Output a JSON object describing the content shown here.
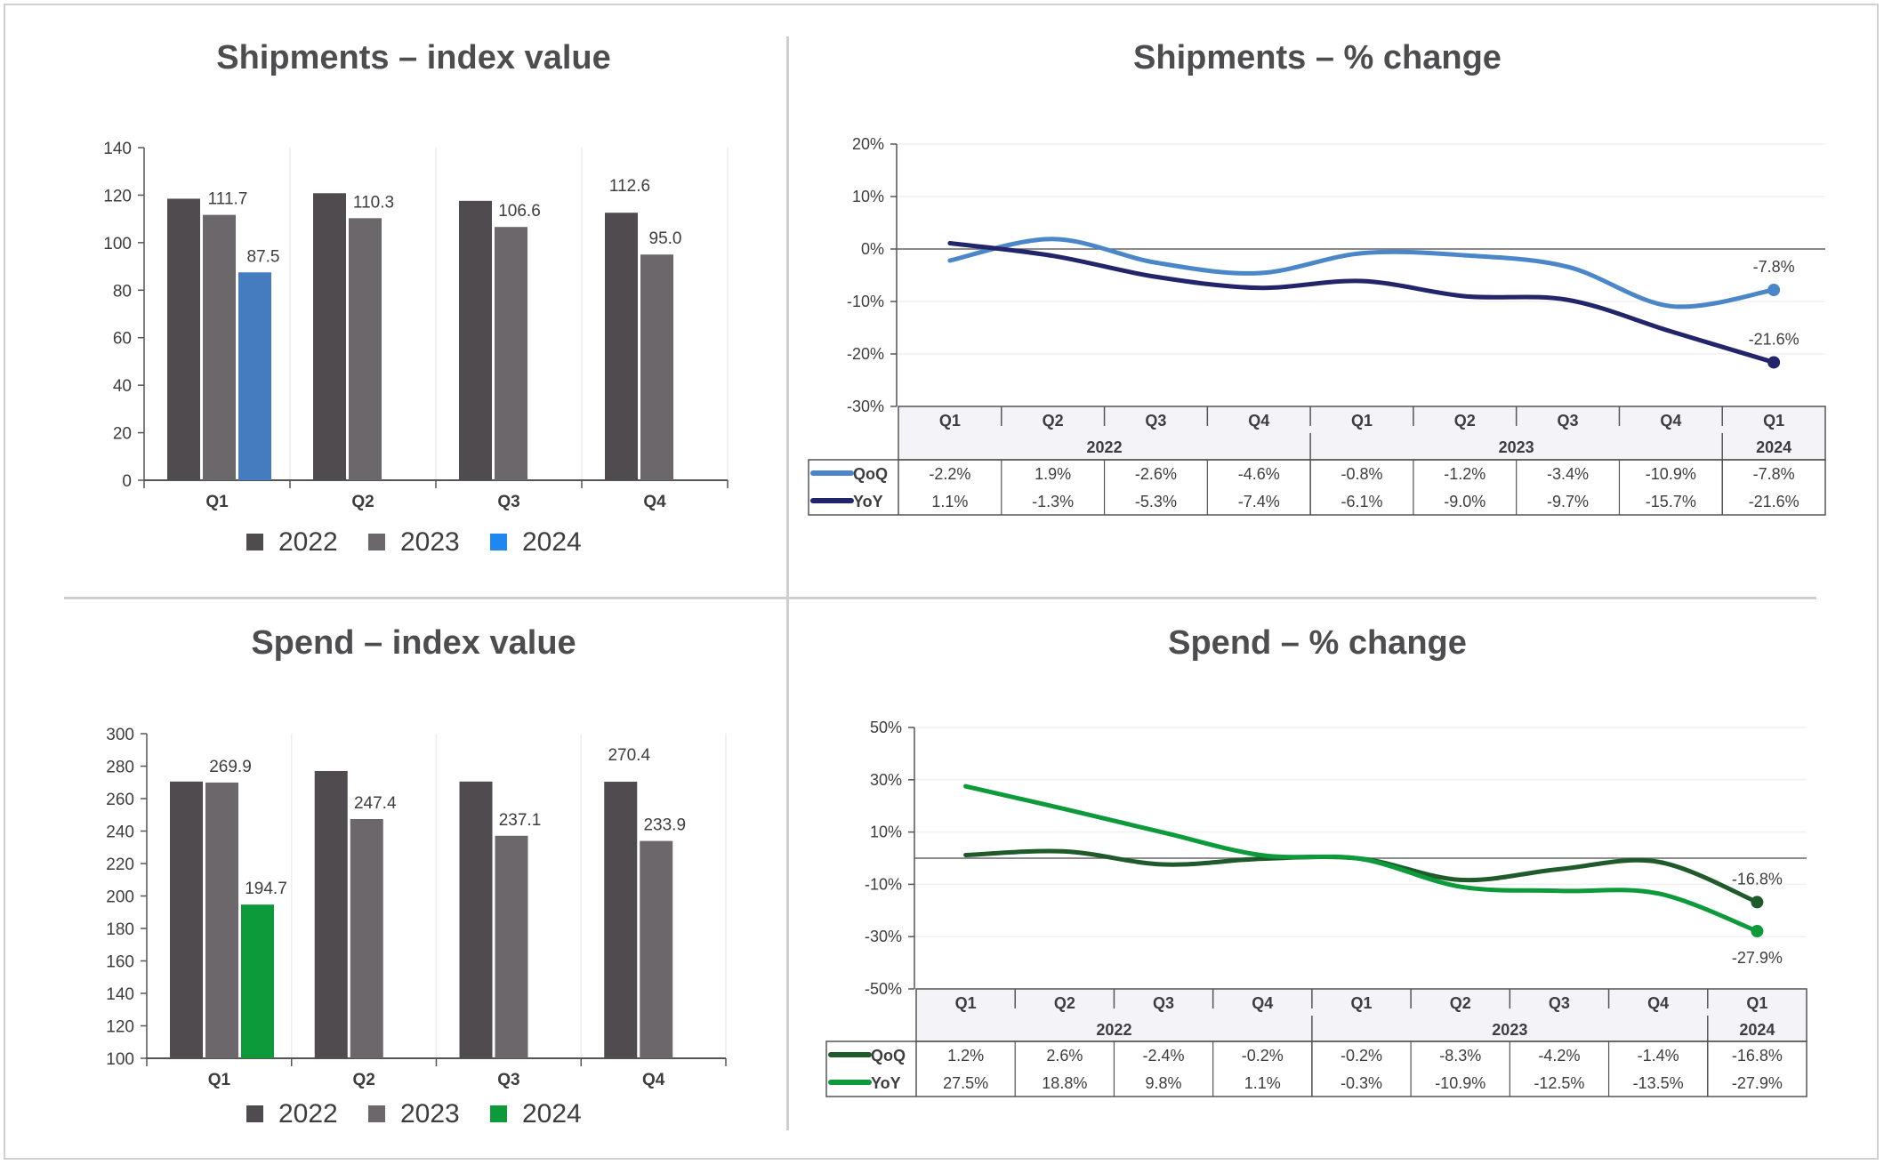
{
  "chart_data": [
    {
      "type": "bar",
      "title": "Shipments – index value",
      "categories": [
        "Q1",
        "Q2",
        "Q3",
        "Q4"
      ],
      "ylim": [
        0,
        140
      ],
      "ystep": 20,
      "series": [
        {
          "name": "2022",
          "color": "#4f4b4f",
          "legend_color": "#4f4b4f",
          "values": [
            118.5,
            120.8,
            117.6,
            112.6
          ],
          "labels": [
            null,
            null,
            null,
            "112.6"
          ]
        },
        {
          "name": "2023",
          "color": "#6b676b",
          "legend_color": "#6b676b",
          "values": [
            111.7,
            110.3,
            106.6,
            95.0
          ],
          "labels": [
            "111.7",
            "110.3",
            "106.6",
            "95.0"
          ]
        },
        {
          "name": "2024",
          "color": "#457bbf",
          "legend_color": "#1e88f0",
          "values": [
            87.5,
            null,
            null,
            null
          ],
          "labels": [
            "87.5",
            null,
            null,
            null
          ]
        }
      ]
    },
    {
      "type": "line",
      "title": "Shipments – % change",
      "ylim": [
        -30,
        20
      ],
      "yticks": [
        20,
        10,
        0,
        -10,
        -20,
        -30
      ],
      "categories": [
        "Q1",
        "Q2",
        "Q3",
        "Q4",
        "Q1",
        "Q2",
        "Q3",
        "Q4",
        "Q1"
      ],
      "years": [
        {
          "label": "2022",
          "span": 4
        },
        {
          "label": "2023",
          "span": 4
        },
        {
          "label": "2024",
          "span": 1
        }
      ],
      "series": [
        {
          "name": "QoQ",
          "color": "#4a86c8",
          "values": [
            -2.2,
            1.9,
            -2.6,
            -4.6,
            -0.8,
            -1.2,
            -3.4,
            -10.9,
            -7.8
          ],
          "labels": [
            "-2.2%",
            "1.9%",
            "-2.6%",
            "-4.6%",
            "-0.8%",
            "-1.2%",
            "-3.4%",
            "-10.9%",
            "-7.8%"
          ],
          "end_label": "-7.8%",
          "end_pos": "above"
        },
        {
          "name": "YoY",
          "color": "#23256b",
          "values": [
            1.1,
            -1.3,
            -5.3,
            -7.4,
            -6.1,
            -9.0,
            -9.7,
            -15.7,
            -21.6
          ],
          "labels": [
            "1.1%",
            "-1.3%",
            "-5.3%",
            "-7.4%",
            "-6.1%",
            "-9.0%",
            "-9.7%",
            "-15.7%",
            "-21.6%"
          ],
          "end_label": "-21.6%",
          "end_pos": "above"
        }
      ]
    },
    {
      "type": "bar",
      "title": "Spend – index value",
      "categories": [
        "Q1",
        "Q2",
        "Q3",
        "Q4"
      ],
      "ylim": [
        100,
        300
      ],
      "ystep": 20,
      "series": [
        {
          "name": "2022",
          "color": "#4f4b4f",
          "legend_color": "#4f4b4f",
          "values": [
            270.5,
            277.0,
            270.5,
            270.4
          ],
          "labels": [
            null,
            null,
            null,
            "270.4"
          ]
        },
        {
          "name": "2023",
          "color": "#6b676b",
          "legend_color": "#6b676b",
          "values": [
            269.9,
            247.4,
            237.1,
            233.9
          ],
          "labels": [
            "269.9",
            "247.4",
            "237.1",
            "233.9"
          ]
        },
        {
          "name": "2024",
          "color": "#0c9a3a",
          "legend_color": "#0c9a3a",
          "values": [
            194.7,
            null,
            null,
            null
          ],
          "labels": [
            "194.7",
            null,
            null,
            null
          ]
        }
      ]
    },
    {
      "type": "line",
      "title": "Spend – % change",
      "ylim": [
        -50,
        50
      ],
      "yticks": [
        50,
        30,
        10,
        -10,
        -30,
        -50
      ],
      "categories": [
        "Q1",
        "Q2",
        "Q3",
        "Q4",
        "Q1",
        "Q2",
        "Q3",
        "Q4",
        "Q1"
      ],
      "years": [
        {
          "label": "2022",
          "span": 4
        },
        {
          "label": "2023",
          "span": 4
        },
        {
          "label": "2024",
          "span": 1
        }
      ],
      "series": [
        {
          "name": "QoQ",
          "color": "#1f5a2a",
          "values": [
            1.2,
            2.6,
            -2.4,
            -0.2,
            -0.2,
            -8.3,
            -4.2,
            -1.4,
            -16.8
          ],
          "labels": [
            "1.2%",
            "2.6%",
            "-2.4%",
            "-0.2%",
            "-0.2%",
            "-8.3%",
            "-4.2%",
            "-1.4%",
            "-16.8%"
          ],
          "end_label": "-16.8%",
          "end_pos": "above"
        },
        {
          "name": "YoY",
          "color": "#0c9a3a",
          "values": [
            27.5,
            18.8,
            9.8,
            1.1,
            -0.3,
            -10.9,
            -12.5,
            -13.5,
            -27.9
          ],
          "labels": [
            "27.5%",
            "18.8%",
            "9.8%",
            "1.1%",
            "-0.3%",
            "-10.9%",
            "-12.5%",
            "-13.5%",
            "-27.9%"
          ],
          "end_label": "-27.9%",
          "end_pos": "below"
        }
      ]
    }
  ]
}
